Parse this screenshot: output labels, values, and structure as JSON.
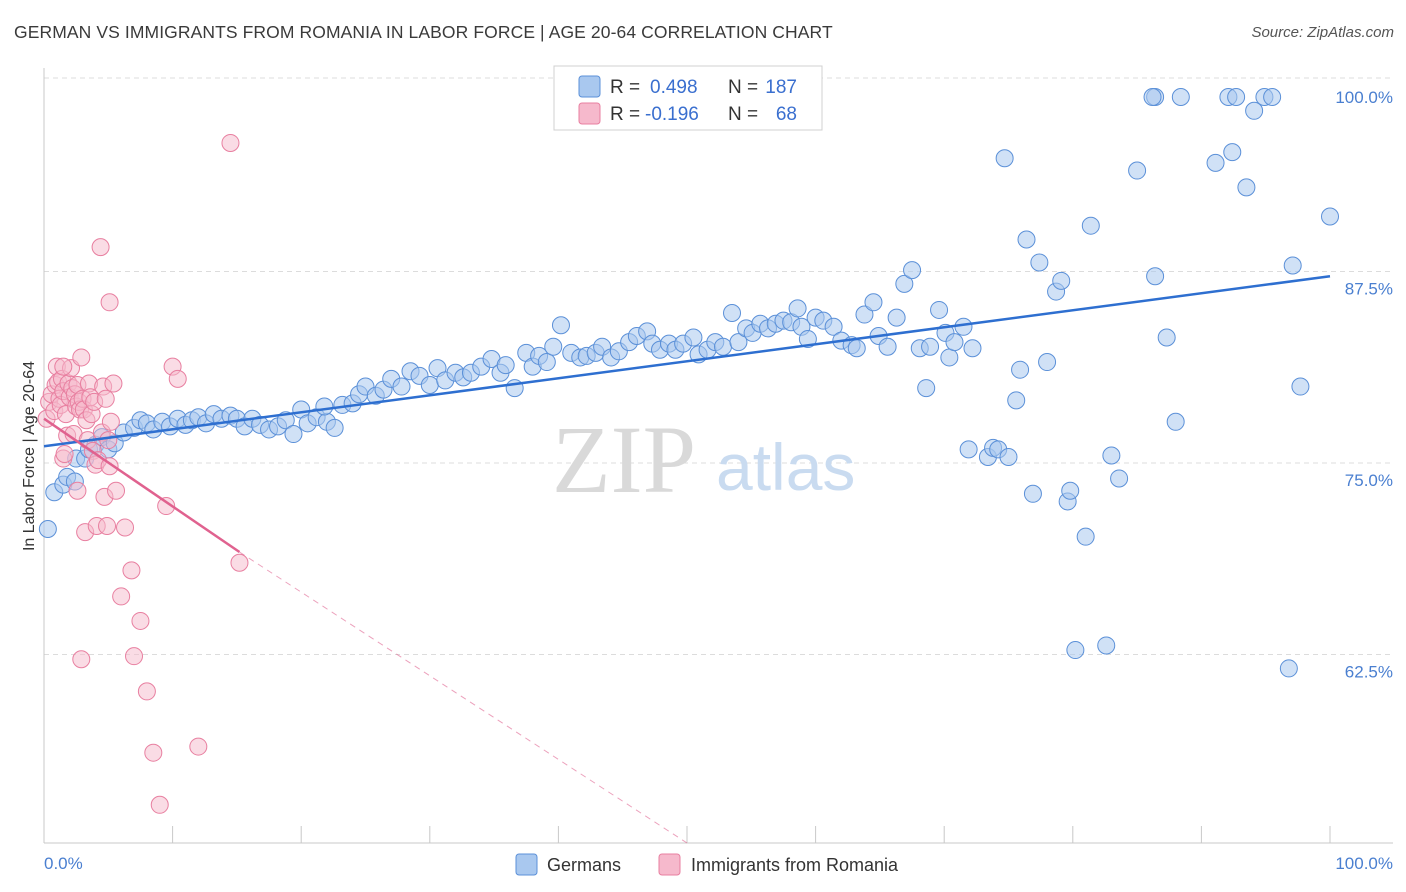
{
  "title": "GERMAN VS IMMIGRANTS FROM ROMANIA IN LABOR FORCE | AGE 20-64 CORRELATION CHART",
  "source": "Source: ZipAtlas.com",
  "watermark": {
    "zip": "ZIP",
    "atlas": "atlas"
  },
  "legend_box": {
    "rows": [
      {
        "r_label": "R =",
        "r_value": "0.498",
        "n_label": "N =",
        "n_value": "187"
      },
      {
        "r_label": "R =",
        "r_value": "-0.196",
        "n_label": "N =",
        "n_value": "68"
      }
    ]
  },
  "colors": {
    "blue_fill": "#a9c8ef",
    "blue_stroke": "#5b90d8",
    "blue_line": "#2e6fd0",
    "pink_fill": "#f6b9cc",
    "pink_stroke": "#e87fa0",
    "pink_line": "#e0628f",
    "tick_text": "#4a7fd0",
    "grid": "#dcdcdc"
  },
  "chart_data": {
    "type": "scatter",
    "title": "GERMAN VS IMMIGRANTS FROM ROMANIA IN LABOR FORCE | AGE 20-64 CORRELATION CHART",
    "xlabel": "",
    "ylabel": "In Labor Force | Age 20-64",
    "xlim": [
      0,
      100
    ],
    "ylim": [
      50,
      100
    ],
    "x_ticks": [
      "0.0%",
      "100.0%"
    ],
    "y_ticks": [
      {
        "value": 100,
        "label": "100.0%"
      },
      {
        "value": 87.5,
        "label": "87.5%"
      },
      {
        "value": 75,
        "label": "75.0%"
      },
      {
        "value": 62.5,
        "label": "62.5%"
      }
    ],
    "grid": true,
    "legend_position": "bottom",
    "series": [
      {
        "name": "Germans",
        "r": 0.498,
        "n": 187,
        "trend": {
          "x": [
            0,
            100
          ],
          "y": [
            77.2,
            88.3
          ]
        },
        "points": [
          [
            0.3,
            71.8
          ],
          [
            0.8,
            74.2
          ],
          [
            1.5,
            74.7
          ],
          [
            1.8,
            75.2
          ],
          [
            2.4,
            74.9
          ],
          [
            2.5,
            76.4
          ],
          [
            3.2,
            76.4
          ],
          [
            3.5,
            77.0
          ],
          [
            4.0,
            77.3
          ],
          [
            4.5,
            77.8
          ],
          [
            5.0,
            77.0
          ],
          [
            5.5,
            77.4
          ],
          [
            6.2,
            78.1
          ],
          [
            7.0,
            78.4
          ],
          [
            7.5,
            78.9
          ],
          [
            8.0,
            78.7
          ],
          [
            8.5,
            78.3
          ],
          [
            9.2,
            78.8
          ],
          [
            9.8,
            78.5
          ],
          [
            10.4,
            79.0
          ],
          [
            11.0,
            78.6
          ],
          [
            11.5,
            78.9
          ],
          [
            12.0,
            79.1
          ],
          [
            12.6,
            78.7
          ],
          [
            13.2,
            79.3
          ],
          [
            13.8,
            79.0
          ],
          [
            14.5,
            79.2
          ],
          [
            15.0,
            79.0
          ],
          [
            15.6,
            78.5
          ],
          [
            16.2,
            79.0
          ],
          [
            16.8,
            78.6
          ],
          [
            17.5,
            78.3
          ],
          [
            18.2,
            78.5
          ],
          [
            18.8,
            78.9
          ],
          [
            19.4,
            78.0
          ],
          [
            20.0,
            79.6
          ],
          [
            20.5,
            78.7
          ],
          [
            21.2,
            79.1
          ],
          [
            22.0,
            78.8
          ],
          [
            21.8,
            79.8
          ],
          [
            22.6,
            78.4
          ],
          [
            23.2,
            79.9
          ],
          [
            24.0,
            80.0
          ],
          [
            24.5,
            80.6
          ],
          [
            25.0,
            81.1
          ],
          [
            25.8,
            80.5
          ],
          [
            26.4,
            80.9
          ],
          [
            27.0,
            81.6
          ],
          [
            27.8,
            81.1
          ],
          [
            28.5,
            82.1
          ],
          [
            29.2,
            81.8
          ],
          [
            30.0,
            81.2
          ],
          [
            30.6,
            82.3
          ],
          [
            31.2,
            81.5
          ],
          [
            32.0,
            82.0
          ],
          [
            32.6,
            81.7
          ],
          [
            33.2,
            82.0
          ],
          [
            34.0,
            82.4
          ],
          [
            34.8,
            82.9
          ],
          [
            35.5,
            82.0
          ],
          [
            35.9,
            82.5
          ],
          [
            36.6,
            81.0
          ],
          [
            37.5,
            83.3
          ],
          [
            38.0,
            82.4
          ],
          [
            38.5,
            83.1
          ],
          [
            39.1,
            82.7
          ],
          [
            39.6,
            83.7
          ],
          [
            40.2,
            85.1
          ],
          [
            41.0,
            83.3
          ],
          [
            41.7,
            83.0
          ],
          [
            42.2,
            83.1
          ],
          [
            42.9,
            83.3
          ],
          [
            43.4,
            83.7
          ],
          [
            44.1,
            83.0
          ],
          [
            44.7,
            83.4
          ],
          [
            45.5,
            84.0
          ],
          [
            46.1,
            84.4
          ],
          [
            46.9,
            84.7
          ],
          [
            47.3,
            83.9
          ],
          [
            47.9,
            83.5
          ],
          [
            48.6,
            83.9
          ],
          [
            49.1,
            83.5
          ],
          [
            49.7,
            83.9
          ],
          [
            50.5,
            84.3
          ],
          [
            50.9,
            83.2
          ],
          [
            51.6,
            83.5
          ],
          [
            52.2,
            84.0
          ],
          [
            52.8,
            83.7
          ],
          [
            53.5,
            85.9
          ],
          [
            54.0,
            84.0
          ],
          [
            54.6,
            84.9
          ],
          [
            55.1,
            84.6
          ],
          [
            55.7,
            85.2
          ],
          [
            56.3,
            84.9
          ],
          [
            56.9,
            85.2
          ],
          [
            57.5,
            85.4
          ],
          [
            58.1,
            85.3
          ],
          [
            58.6,
            86.2
          ],
          [
            58.9,
            85.0
          ],
          [
            59.4,
            84.2
          ],
          [
            60.0,
            85.6
          ],
          [
            60.6,
            85.4
          ],
          [
            61.4,
            85.0
          ],
          [
            62.0,
            84.1
          ],
          [
            62.8,
            83.8
          ],
          [
            63.2,
            83.6
          ],
          [
            63.8,
            85.8
          ],
          [
            64.5,
            86.6
          ],
          [
            64.9,
            84.4
          ],
          [
            65.6,
            83.7
          ],
          [
            66.3,
            85.6
          ],
          [
            66.9,
            87.8
          ],
          [
            67.5,
            88.7
          ],
          [
            68.1,
            83.6
          ],
          [
            68.6,
            81.0
          ],
          [
            68.9,
            83.7
          ],
          [
            69.6,
            86.1
          ],
          [
            70.1,
            84.6
          ],
          [
            70.4,
            83.0
          ],
          [
            70.8,
            84.0
          ],
          [
            71.5,
            85.0
          ],
          [
            72.2,
            83.6
          ],
          [
            71.9,
            77.0
          ],
          [
            73.4,
            76.5
          ],
          [
            73.8,
            77.1
          ],
          [
            74.2,
            77.0
          ],
          [
            74.7,
            96.0
          ],
          [
            75.0,
            76.5
          ],
          [
            75.6,
            80.2
          ],
          [
            75.9,
            82.2
          ],
          [
            76.4,
            90.7
          ],
          [
            76.9,
            74.1
          ],
          [
            77.4,
            89.2
          ],
          [
            78.0,
            82.7
          ],
          [
            78.7,
            87.3
          ],
          [
            79.1,
            88.0
          ],
          [
            79.6,
            73.6
          ],
          [
            79.8,
            74.3
          ],
          [
            80.2,
            63.9
          ],
          [
            81.0,
            71.3
          ],
          [
            81.4,
            91.6
          ],
          [
            82.6,
            64.2
          ],
          [
            83.0,
            76.6
          ],
          [
            83.6,
            75.1
          ],
          [
            85.0,
            95.2
          ],
          [
            86.4,
            88.3
          ],
          [
            87.3,
            84.3
          ],
          [
            88.0,
            78.8
          ],
          [
            86.4,
            100.0
          ],
          [
            86.2,
            100.0
          ],
          [
            88.4,
            100.0
          ],
          [
            91.1,
            95.7
          ],
          [
            92.4,
            96.4
          ],
          [
            92.1,
            100.0
          ],
          [
            92.7,
            100.0
          ],
          [
            93.5,
            94.1
          ],
          [
            94.1,
            99.1
          ],
          [
            94.9,
            100.0
          ],
          [
            95.5,
            100.0
          ],
          [
            96.8,
            62.7
          ],
          [
            97.1,
            89.0
          ],
          [
            97.7,
            81.1
          ],
          [
            100.0,
            92.2
          ]
        ]
      },
      {
        "name": "Immigrants from Romania",
        "r": -0.196,
        "n": 68,
        "trend": {
          "x": [
            0,
            15.2
          ],
          "y": [
            79.0,
            70.3
          ]
        },
        "trend_extension": {
          "x": [
            15.2,
            50
          ],
          "y": [
            70.3,
            50
          ]
        },
        "points": [
          [
            0.2,
            79.0
          ],
          [
            0.4,
            80.1
          ],
          [
            0.6,
            80.6
          ],
          [
            0.8,
            79.5
          ],
          [
            0.9,
            81.2
          ],
          [
            1.0,
            82.4
          ],
          [
            1.1,
            81.4
          ],
          [
            1.2,
            80.3
          ],
          [
            1.3,
            79.9
          ],
          [
            1.4,
            81.6
          ],
          [
            1.5,
            80.8
          ],
          [
            1.5,
            76.4
          ],
          [
            1.6,
            76.7
          ],
          [
            1.7,
            79.3
          ],
          [
            1.8,
            77.9
          ],
          [
            1.9,
            81.3
          ],
          [
            2.0,
            80.4
          ],
          [
            2.1,
            82.3
          ],
          [
            2.2,
            81.0
          ],
          [
            2.3,
            78.0
          ],
          [
            2.4,
            80.6
          ],
          [
            2.5,
            79.8
          ],
          [
            2.6,
            81.2
          ],
          [
            2.6,
            74.3
          ],
          [
            2.7,
            80.1
          ],
          [
            2.8,
            79.6
          ],
          [
            2.9,
            83.0
          ],
          [
            3.0,
            80.3
          ],
          [
            3.1,
            79.6
          ],
          [
            3.2,
            71.6
          ],
          [
            3.3,
            78.9
          ],
          [
            3.4,
            77.6
          ],
          [
            3.5,
            81.3
          ],
          [
            3.6,
            80.4
          ],
          [
            3.7,
            79.3
          ],
          [
            3.8,
            76.9
          ],
          [
            3.9,
            80.1
          ],
          [
            4.0,
            76.0
          ],
          [
            4.1,
            72.0
          ],
          [
            4.2,
            76.3
          ],
          [
            4.4,
            90.2
          ],
          [
            4.5,
            78.1
          ],
          [
            4.6,
            81.1
          ],
          [
            4.7,
            73.9
          ],
          [
            4.8,
            80.3
          ],
          [
            4.9,
            72.0
          ],
          [
            5.0,
            77.6
          ],
          [
            5.1,
            75.9
          ],
          [
            5.2,
            78.8
          ],
          [
            5.4,
            81.3
          ],
          [
            5.6,
            74.3
          ],
          [
            6.0,
            67.4
          ],
          [
            6.3,
            71.9
          ],
          [
            6.8,
            69.1
          ],
          [
            7.0,
            63.5
          ],
          [
            7.5,
            65.8
          ],
          [
            8.0,
            61.2
          ],
          [
            8.5,
            57.2
          ],
          [
            9.0,
            53.8
          ],
          [
            9.5,
            73.3
          ],
          [
            10.0,
            82.4
          ],
          [
            10.4,
            81.6
          ],
          [
            12.0,
            57.6
          ],
          [
            14.5,
            97.0
          ],
          [
            15.2,
            69.6
          ],
          [
            5.1,
            86.6
          ],
          [
            2.9,
            63.3
          ],
          [
            1.5,
            82.4
          ]
        ]
      }
    ]
  },
  "bottom_legend": [
    {
      "label": "Germans"
    },
    {
      "label": "Immigrants from Romania"
    }
  ]
}
